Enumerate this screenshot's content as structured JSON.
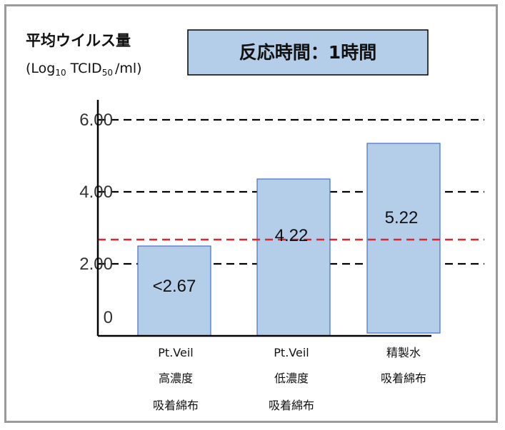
{
  "chart_data": {
    "type": "bar",
    "title": "反応時間：1時間",
    "ylabel_line1": "平均ウイルス量",
    "ylabel_line2": {
      "open": "(Log",
      "sub1": "10",
      "mid": " TCID",
      "sub2": "50",
      "close": "/ml)"
    },
    "y_ticks": [
      "6.00",
      "4.00",
      "2.00",
      "0"
    ],
    "y_tick_values": [
      6,
      4,
      2,
      0
    ],
    "ylim": [
      0,
      6.5
    ],
    "categories": [
      [
        "Pt.Veil",
        "高濃度",
        "吸着綿布"
      ],
      [
        "Pt.Veil",
        "低濃度",
        "吸着綿布"
      ],
      [
        "精製水",
        "吸着綿布"
      ]
    ],
    "values": [
      2.67,
      4.22,
      5.22
    ],
    "value_labels": [
      "<2.67",
      "4.22",
      "5.22"
    ],
    "detection_limit": 2.67,
    "bar_color": "#b4cde9",
    "bar_edge_color": "#4472c4",
    "gridline_color": "#000000",
    "limit_line_color": "#e8202a",
    "title_box_color": "#b4cde9",
    "grid": "dashed"
  }
}
